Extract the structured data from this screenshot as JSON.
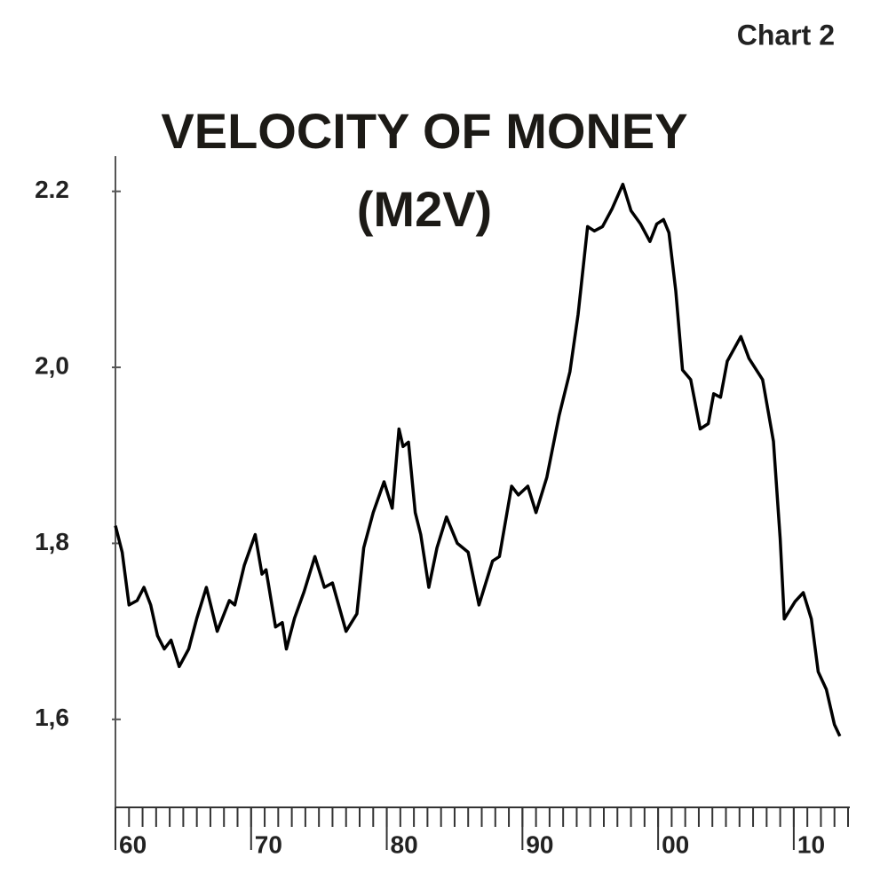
{
  "chart_data": {
    "type": "line",
    "label": "Chart 2",
    "title": "VELOCITY OF MONEY",
    "subtitle": "(M2V)",
    "xlim": [
      1960,
      2014
    ],
    "xticks": [
      {
        "value": 1960,
        "label": "60"
      },
      {
        "value": 1970,
        "label": "70"
      },
      {
        "value": 1980,
        "label": "80"
      },
      {
        "value": 1990,
        "label": "90"
      },
      {
        "value": 2000,
        "label": "00"
      },
      {
        "value": 2010,
        "label": "10"
      }
    ],
    "ylim": [
      1.5,
      2.24
    ],
    "yticks": [
      {
        "value": 1.6,
        "label": "1,6"
      },
      {
        "value": 1.8,
        "label": "1,8"
      },
      {
        "value": 2.0,
        "label": "2,0"
      },
      2.2
    ],
    "grid": false,
    "series": [
      {
        "color": "#000000",
        "x": [
          1960.0,
          1960.5,
          1961.0,
          1961.6,
          1962.1,
          1962.6,
          1963.1,
          1963.6,
          1964.1,
          1964.7,
          1965.4,
          1966.0,
          1966.7,
          1967.5,
          1968.4,
          1968.8,
          1969.5,
          1970.3,
          1970.8,
          1971.1,
          1971.8,
          1972.3,
          1972.6,
          1973.2,
          1973.9,
          1974.7,
          1975.4,
          1976.0,
          1977.0,
          1977.8,
          1978.3,
          1979.0,
          1979.8,
          1980.4,
          1980.9,
          1981.2,
          1981.6,
          1982.1,
          1982.5,
          1983.1,
          1983.7,
          1984.4,
          1985.2,
          1986.0,
          1986.8,
          1987.8,
          1988.3,
          1989.2,
          1989.7,
          1990.4,
          1991.0,
          1991.8,
          1992.7,
          1993.5,
          1994.1,
          1994.8,
          1995.3,
          1995.9,
          1996.6,
          1997.4,
          1998.0,
          1998.7,
          1999.4,
          1999.9,
          2000.4,
          2000.8,
          2001.3,
          2001.8,
          2002.4,
          2003.1,
          2003.7,
          2004.1,
          2004.6,
          2005.1,
          2006.1,
          2006.7,
          2007.7,
          2008.5,
          2009.0,
          2009.3,
          2010.1,
          2010.7,
          2011.3,
          2011.8,
          2012.4,
          2013.0,
          2013.4
        ],
        "values": [
          1.82,
          1.79,
          1.73,
          1.735,
          1.75,
          1.73,
          1.695,
          1.68,
          1.69,
          1.66,
          1.68,
          1.715,
          1.75,
          1.7,
          1.735,
          1.73,
          1.775,
          1.81,
          1.765,
          1.77,
          1.705,
          1.71,
          1.68,
          1.715,
          1.745,
          1.785,
          1.75,
          1.755,
          1.7,
          1.72,
          1.795,
          1.835,
          1.87,
          1.84,
          1.93,
          1.91,
          1.915,
          1.835,
          1.81,
          1.75,
          1.795,
          1.83,
          1.8,
          1.79,
          1.73,
          1.78,
          1.785,
          1.865,
          1.855,
          1.865,
          1.835,
          1.875,
          1.945,
          1.995,
          2.06,
          2.16,
          2.155,
          2.16,
          2.18,
          2.208,
          2.178,
          2.163,
          2.143,
          2.163,
          2.168,
          2.153,
          2.087,
          1.997,
          1.986,
          1.93,
          1.936,
          1.97,
          1.966,
          2.007,
          2.035,
          2.01,
          1.986,
          1.916,
          1.805,
          1.714,
          1.734,
          1.744,
          1.714,
          1.654,
          1.634,
          1.594,
          1.581
        ]
      }
    ]
  }
}
